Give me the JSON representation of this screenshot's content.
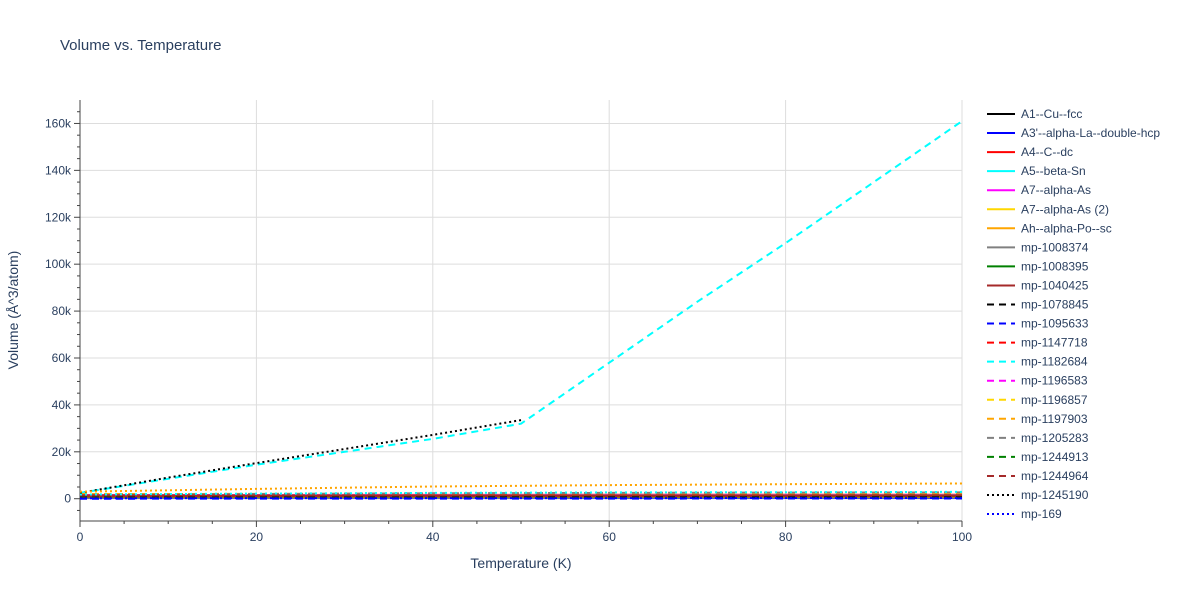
{
  "chart_data": {
    "type": "line",
    "title": "Volume vs. Temperature",
    "xlabel": "Temperature (K)",
    "ylabel": "Volume (Å^3/atom)",
    "xlim": [
      0,
      100
    ],
    "ylim": [
      -9500,
      170000
    ],
    "x_ticks": [
      0,
      20,
      40,
      60,
      80,
      100
    ],
    "x_tick_labels": [
      "0",
      "20",
      "40",
      "60",
      "80",
      "100"
    ],
    "y_ticks": [
      0,
      20000,
      40000,
      60000,
      80000,
      100000,
      120000,
      140000,
      160000
    ],
    "y_tick_labels": [
      "0",
      "20k",
      "40k",
      "60k",
      "80k",
      "100k",
      "120k",
      "140k",
      "160k"
    ],
    "grid": true,
    "legend_position": "right",
    "series": [
      {
        "name": "A1--Cu--fcc",
        "color": "#000000",
        "dash": "solid",
        "x": [
          0,
          100
        ],
        "y": [
          1000,
          1100
        ]
      },
      {
        "name": "A3'--alpha-La--double-hcp",
        "color": "#0000ff",
        "dash": "solid",
        "x": [
          0,
          100
        ],
        "y": [
          400,
          450
        ]
      },
      {
        "name": "A4--C--dc",
        "color": "#ff0000",
        "dash": "solid",
        "x": [
          0,
          100
        ],
        "y": [
          1600,
          1700
        ]
      },
      {
        "name": "A5--beta-Sn",
        "color": "#00ffff",
        "dash": "solid",
        "x": [
          0,
          100
        ],
        "y": [
          1200,
          1300
        ]
      },
      {
        "name": "A7--alpha-As",
        "color": "#ff00ff",
        "dash": "solid",
        "x": [
          0,
          100
        ],
        "y": [
          1400,
          1500
        ]
      },
      {
        "name": "A7--alpha-As (2)",
        "color": "#ffd700",
        "dash": "solid",
        "x": [
          0,
          100
        ],
        "y": [
          800,
          900
        ]
      },
      {
        "name": "Ah--alpha-Po--sc",
        "color": "#ffa500",
        "dash": "solid",
        "x": [
          0,
          100
        ],
        "y": [
          600,
          700
        ]
      },
      {
        "name": "mp-1008374",
        "color": "#808080",
        "dash": "solid",
        "x": [
          0,
          100
        ],
        "y": [
          1300,
          1400
        ]
      },
      {
        "name": "mp-1008395",
        "color": "#008000",
        "dash": "solid",
        "x": [
          0,
          100
        ],
        "y": [
          900,
          1000
        ]
      },
      {
        "name": "mp-1040425",
        "color": "#a52a2a",
        "dash": "solid",
        "x": [
          0,
          100
        ],
        "y": [
          1100,
          1200
        ]
      },
      {
        "name": "mp-1078845",
        "color": "#000000",
        "dash": "dash",
        "x": [
          0,
          100
        ],
        "y": [
          1000,
          1050
        ]
      },
      {
        "name": "mp-1095633",
        "color": "#0000ff",
        "dash": "dash",
        "x": [
          0,
          100
        ],
        "y": [
          0,
          100
        ]
      },
      {
        "name": "mp-1147718",
        "color": "#ff0000",
        "dash": "dash",
        "x": [
          0,
          100
        ],
        "y": [
          1500,
          1600
        ]
      },
      {
        "name": "mp-1182684",
        "color": "#00ffff",
        "dash": "dash",
        "x": [
          0,
          10,
          20,
          30,
          40,
          50,
          60,
          70,
          80,
          90,
          100
        ],
        "y": [
          2500,
          8500,
          14500,
          20000,
          25500,
          32000,
          58000,
          84000,
          109000,
          135000,
          161000
        ]
      },
      {
        "name": "mp-1196583",
        "color": "#ff00ff",
        "dash": "dash",
        "x": [
          0,
          100
        ],
        "y": [
          1800,
          2000
        ]
      },
      {
        "name": "mp-1196857",
        "color": "#ffd700",
        "dash": "dash",
        "x": [
          0,
          100
        ],
        "y": [
          1900,
          2100
        ]
      },
      {
        "name": "mp-1197903",
        "color": "#ffa500",
        "dash": "dash",
        "x": [
          0,
          100
        ],
        "y": [
          2000,
          2200
        ]
      },
      {
        "name": "mp-1205283",
        "color": "#808080",
        "dash": "dash",
        "x": [
          0,
          20,
          40,
          60,
          80,
          100
        ],
        "y": [
          1500,
          2000,
          2300,
          2500,
          2600,
          2700
        ]
      },
      {
        "name": "mp-1244913",
        "color": "#008000",
        "dash": "dash",
        "x": [
          0,
          100
        ],
        "y": [
          1300,
          1400
        ]
      },
      {
        "name": "mp-1244964",
        "color": "#a52a2a",
        "dash": "dash",
        "x": [
          0,
          100
        ],
        "y": [
          1400,
          1500
        ]
      },
      {
        "name": "mp-1245190",
        "color": "#000000",
        "dash": "dot",
        "x": [
          0,
          10,
          20,
          30,
          40,
          50
        ],
        "y": [
          2500,
          9000,
          15200,
          21200,
          27200,
          33500
        ]
      },
      {
        "name": "mp-169",
        "color": "#0000ff",
        "dash": "dot",
        "x": [
          0,
          100
        ],
        "y": [
          200,
          300
        ]
      },
      {
        "name": "",
        "color": "#ffa500",
        "dash": "dot",
        "x": [
          0,
          20,
          40,
          60,
          80,
          100
        ],
        "y": [
          3000,
          4200,
          5200,
          5800,
          6200,
          6500
        ]
      },
      {
        "name": "",
        "color": "#00ffff",
        "dash": "dot",
        "x": [
          0,
          20,
          40,
          60,
          80,
          100
        ],
        "y": [
          1800,
          2200,
          2500,
          2700,
          2800,
          2900
        ]
      }
    ]
  }
}
